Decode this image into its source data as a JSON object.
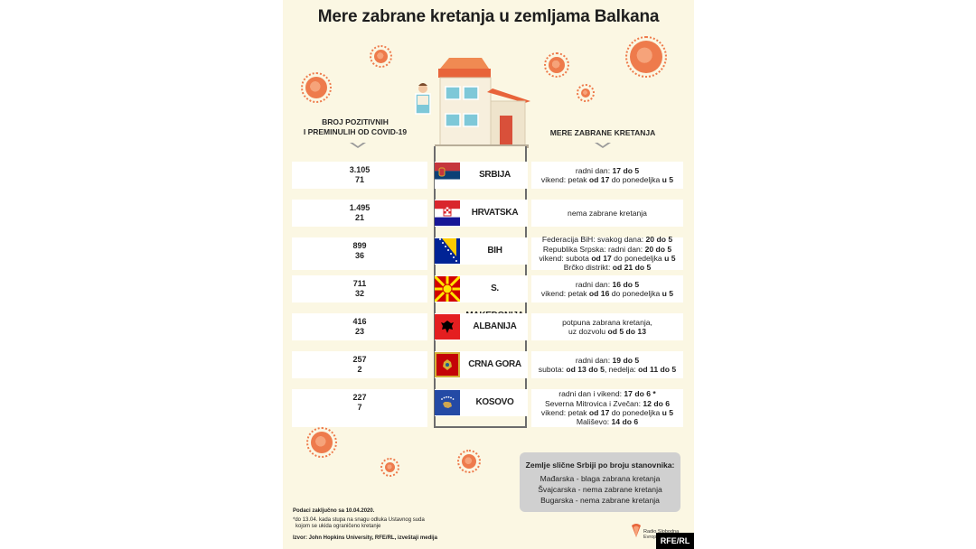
{
  "title": "Mere zabrane kretanja u zemljama Balkana",
  "left_header": [
    "BROJ POZITIVNIH",
    "I PREMINULIH OD COVID-19"
  ],
  "right_header": "MERE ZABRANE KRETANJA",
  "rows": [
    {
      "country": "SRBIJA",
      "positive": "3.105",
      "deaths": "71",
      "flag": "serbia-flag",
      "measures": [
        [
          {
            "t": "radni dan: "
          },
          {
            "t": "17 do 5",
            "b": true
          }
        ],
        [
          {
            "t": "vikend: petak "
          },
          {
            "t": "od 17",
            "b": true
          },
          {
            "t": " do ponedeljka "
          },
          {
            "t": "u 5",
            "b": true
          }
        ]
      ]
    },
    {
      "country": "HRVATSKA",
      "positive": "1.495",
      "deaths": "21",
      "flag": "croatia-flag",
      "measures": [
        [
          {
            "t": "nema zabrane kretanja"
          }
        ]
      ]
    },
    {
      "country": "BIH",
      "positive": "899",
      "deaths": "36",
      "flag": "bih-flag",
      "measures": [
        [
          {
            "t": "Federacija BiH: svakog dana: "
          },
          {
            "t": "20 do 5",
            "b": true
          }
        ],
        [
          {
            "t": "Republika Srpska: radni dan: "
          },
          {
            "t": "20 do 5",
            "b": true
          }
        ],
        [
          {
            "t": "vikend: subota "
          },
          {
            "t": "od 17",
            "b": true
          },
          {
            "t": " do ponedeljka "
          },
          {
            "t": "u 5",
            "b": true
          }
        ],
        [
          {
            "t": "Brčko distrikt: "
          },
          {
            "t": "od 21 do 5",
            "b": true
          }
        ]
      ]
    },
    {
      "country": "S. MAKEDONIJA",
      "positive": "711",
      "deaths": "32",
      "flag": "macedonia-flag",
      "measures": [
        [
          {
            "t": "radni dan: "
          },
          {
            "t": "16 do 5",
            "b": true
          }
        ],
        [
          {
            "t": "vikend: petak "
          },
          {
            "t": "od 16",
            "b": true
          },
          {
            "t": " do ponedeljka "
          },
          {
            "t": "u 5",
            "b": true
          }
        ]
      ]
    },
    {
      "country": "ALBANIJA",
      "positive": "416",
      "deaths": "23",
      "flag": "albania-flag",
      "measures": [
        [
          {
            "t": "potpuna zabrana kretanja,"
          }
        ],
        [
          {
            "t": "uz dozvolu "
          },
          {
            "t": "od 5 do 13",
            "b": true
          }
        ]
      ]
    },
    {
      "country": "CRNA GORA",
      "positive": "257",
      "deaths": "2",
      "flag": "montenegro-flag",
      "measures": [
        [
          {
            "t": "radni dan: "
          },
          {
            "t": "19 do 5",
            "b": true
          }
        ],
        [
          {
            "t": "subota: "
          },
          {
            "t": "od 13 do 5",
            "b": true
          },
          {
            "t": ", nedelja: "
          },
          {
            "t": "od 11 do 5",
            "b": true
          }
        ]
      ]
    },
    {
      "country": "KOSOVO",
      "positive": "227",
      "deaths": "7",
      "flag": "kosovo-flag",
      "measures": [
        [
          {
            "t": "radni dan i vikend: "
          },
          {
            "t": "17 do 6 *",
            "b": true
          }
        ],
        [
          {
            "t": "Severna Mitrovica i Zvečan: "
          },
          {
            "t": "12 do 6",
            "b": true
          }
        ],
        [
          {
            "t": "vikend: petak "
          },
          {
            "t": "od 17",
            "b": true
          },
          {
            "t": " do ponedeljka "
          },
          {
            "t": "u 5",
            "b": true
          }
        ],
        [
          {
            "t": "Mališevo: "
          },
          {
            "t": "14 do 6",
            "b": true
          }
        ]
      ]
    }
  ],
  "similar": {
    "title": "Zemlje slične Srbiji po broju stanovnika:",
    "items": [
      "Mađarska - blaga zabrana kretanja",
      "Švajcarska - nema zabrane kretanja",
      "Bugarska - nema zabrane kretanja"
    ]
  },
  "footer": {
    "data_date": "Podaci zaključno sa 10.04.2020.",
    "note1": "*do 13.04. kada stupa na snagu odluka Ustavnog suda",
    "note2": "kojom se ukida ograničeno kretanje",
    "source": "Izvor: John Hopkins University, RFE/RL, izveštaji medija"
  },
  "logo": {
    "line1": "Radio Slobodna",
    "line2": "Evropa"
  },
  "badge": "RFE/RL",
  "colors": {
    "poster_bg": "#fbf7e3",
    "virus": "#ee7b4c",
    "accent": "#e8643a"
  }
}
